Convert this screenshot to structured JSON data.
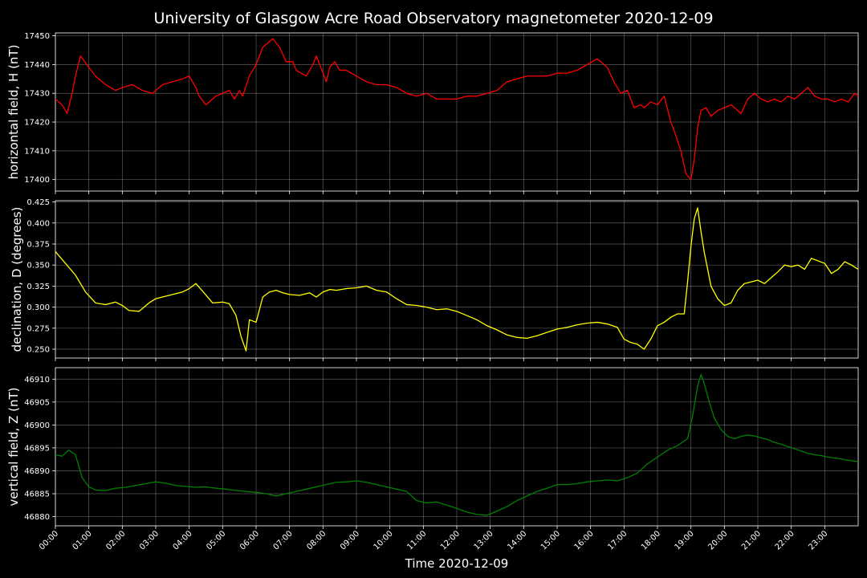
{
  "title": "University of Glasgow Acre Road Observatory magnetometer 2020-12-09",
  "chart_data": [
    {
      "type": "line",
      "ylabel": "horizontal field, H (nT)",
      "color": "#ff0000",
      "xlim": [
        0,
        24
      ],
      "ylim": [
        17396,
        17451
      ],
      "yticks": [
        17400,
        17410,
        17420,
        17430,
        17440,
        17450
      ],
      "grid": true,
      "series": [
        {
          "x": [
            0,
            0.2,
            0.35,
            0.5,
            0.6,
            0.75,
            1.0,
            1.2,
            1.5,
            1.8,
            2.0,
            2.3,
            2.6,
            2.9,
            3.2,
            3.5,
            3.8,
            4.0,
            4.2,
            4.3,
            4.5,
            4.8,
            5.0,
            5.2,
            5.35,
            5.5,
            5.6,
            5.8,
            6.0,
            6.2,
            6.5,
            6.7,
            6.9,
            7.1,
            7.2,
            7.35,
            7.5,
            7.7,
            7.8,
            8.0,
            8.1,
            8.2,
            8.35,
            8.5,
            8.7,
            9.0,
            9.3,
            9.6,
            9.9,
            10.2,
            10.5,
            10.8,
            11.1,
            11.4,
            11.7,
            12.0,
            12.3,
            12.6,
            12.9,
            13.2,
            13.5,
            13.8,
            14.1,
            14.4,
            14.7,
            15.0,
            15.3,
            15.6,
            15.9,
            16.2,
            16.5,
            16.7,
            16.9,
            17.1,
            17.3,
            17.5,
            17.6,
            17.8,
            18.0,
            18.2,
            18.4,
            18.5,
            18.7,
            18.85,
            19.0,
            19.1,
            19.2,
            19.3,
            19.45,
            19.6,
            19.8,
            20.0,
            20.2,
            20.4,
            20.5,
            20.7,
            20.9,
            21.1,
            21.3,
            21.5,
            21.7,
            21.9,
            22.1,
            22.3,
            22.5,
            22.7,
            22.9,
            23.1,
            23.3,
            23.5,
            23.7,
            23.9,
            24.0
          ],
          "values": [
            17428,
            17426,
            17423,
            17430,
            17436,
            17443,
            17439,
            17436,
            17433,
            17431,
            17432,
            17433,
            17431,
            17430,
            17433,
            17434,
            17435,
            17436,
            17432,
            17429,
            17426,
            17429,
            17430,
            17431,
            17428,
            17431,
            17429,
            17436,
            17440,
            17446,
            17449,
            17446,
            17441,
            17441,
            17438,
            17437,
            17436,
            17440,
            17443,
            17437,
            17434,
            17439,
            17441,
            17438,
            17438,
            17436,
            17434,
            17433,
            17433,
            17432,
            17430,
            17429,
            17430,
            17428,
            17428,
            17428,
            17429,
            17429,
            17430,
            17431,
            17434,
            17435,
            17436,
            17436,
            17436,
            17437,
            17437,
            17438,
            17440,
            17442,
            17439,
            17434,
            17430,
            17431,
            17425,
            17426,
            17425,
            17427,
            17426,
            17429,
            17420,
            17417,
            17410,
            17402,
            17400,
            17407,
            17418,
            17424,
            17425,
            17422,
            17424,
            17425,
            17426,
            17424,
            17423,
            17428,
            17430,
            17428,
            17427,
            17428,
            17427,
            17429,
            17428,
            17430,
            17432,
            17429,
            17428,
            17428,
            17427,
            17428,
            17427,
            17430,
            17429
          ]
        }
      ]
    },
    {
      "type": "line",
      "ylabel": "declination, D (degrees)",
      "color": "#ffff00",
      "xlim": [
        0,
        24
      ],
      "ylim": [
        0.2395,
        0.4265
      ],
      "yticks": [
        0.25,
        0.275,
        0.3,
        0.325,
        0.35,
        0.375,
        0.4,
        0.425
      ],
      "grid": true,
      "series": [
        {
          "x": [
            0,
            0.3,
            0.6,
            0.9,
            1.2,
            1.5,
            1.8,
            2.0,
            2.2,
            2.5,
            2.8,
            3.0,
            3.2,
            3.5,
            3.8,
            4.0,
            4.2,
            4.4,
            4.7,
            5.0,
            5.2,
            5.4,
            5.55,
            5.7,
            5.8,
            6.0,
            6.2,
            6.4,
            6.6,
            6.8,
            7.0,
            7.3,
            7.6,
            7.8,
            8.0,
            8.2,
            8.4,
            8.7,
            9.0,
            9.3,
            9.6,
            9.9,
            10.2,
            10.5,
            10.8,
            11.1,
            11.4,
            11.7,
            12.0,
            12.3,
            12.6,
            12.9,
            13.2,
            13.5,
            13.8,
            14.1,
            14.4,
            14.7,
            15.0,
            15.3,
            15.6,
            15.9,
            16.2,
            16.5,
            16.8,
            17.0,
            17.2,
            17.4,
            17.6,
            17.8,
            18.0,
            18.2,
            18.4,
            18.6,
            18.8,
            18.9,
            19.0,
            19.1,
            19.2,
            19.3,
            19.4,
            19.5,
            19.6,
            19.8,
            20.0,
            20.2,
            20.4,
            20.6,
            20.8,
            21.0,
            21.2,
            21.4,
            21.6,
            21.8,
            22.0,
            22.2,
            22.4,
            22.6,
            22.8,
            23.0,
            23.2,
            23.4,
            23.6,
            23.8,
            24.0
          ],
          "values": [
            0.366,
            0.352,
            0.338,
            0.318,
            0.305,
            0.303,
            0.306,
            0.302,
            0.296,
            0.295,
            0.305,
            0.31,
            0.312,
            0.315,
            0.318,
            0.322,
            0.328,
            0.319,
            0.305,
            0.306,
            0.304,
            0.29,
            0.265,
            0.248,
            0.285,
            0.282,
            0.312,
            0.318,
            0.32,
            0.317,
            0.315,
            0.314,
            0.317,
            0.312,
            0.318,
            0.321,
            0.32,
            0.322,
            0.323,
            0.325,
            0.32,
            0.318,
            0.31,
            0.303,
            0.302,
            0.3,
            0.297,
            0.298,
            0.295,
            0.29,
            0.285,
            0.278,
            0.273,
            0.267,
            0.264,
            0.263,
            0.266,
            0.27,
            0.274,
            0.276,
            0.279,
            0.281,
            0.282,
            0.28,
            0.276,
            0.262,
            0.258,
            0.256,
            0.25,
            0.262,
            0.278,
            0.282,
            0.288,
            0.292,
            0.292,
            0.33,
            0.372,
            0.405,
            0.418,
            0.39,
            0.365,
            0.345,
            0.325,
            0.31,
            0.302,
            0.305,
            0.32,
            0.328,
            0.33,
            0.332,
            0.328,
            0.335,
            0.342,
            0.35,
            0.348,
            0.35,
            0.345,
            0.358,
            0.355,
            0.352,
            0.34,
            0.345,
            0.354,
            0.35,
            0.345
          ]
        }
      ]
    },
    {
      "type": "line",
      "ylabel": "vertical field, Z (nT)",
      "color": "#008000",
      "xlim": [
        0,
        24
      ],
      "ylim": [
        46878,
        46912.5
      ],
      "yticks": [
        46880,
        46885,
        46890,
        46895,
        46900,
        46905,
        46910
      ],
      "grid": true,
      "series": [
        {
          "x": [
            0,
            0.2,
            0.4,
            0.6,
            0.8,
            1.0,
            1.2,
            1.5,
            1.8,
            2.1,
            2.4,
            2.7,
            3.0,
            3.3,
            3.6,
            3.9,
            4.2,
            4.5,
            4.8,
            5.1,
            5.4,
            5.7,
            6.0,
            6.3,
            6.6,
            6.9,
            7.2,
            7.5,
            7.8,
            8.1,
            8.4,
            8.7,
            9.0,
            9.3,
            9.6,
            9.9,
            10.2,
            10.5,
            10.8,
            11.1,
            11.4,
            11.7,
            12.0,
            12.3,
            12.6,
            12.9,
            13.2,
            13.5,
            13.8,
            14.1,
            14.4,
            14.7,
            15.0,
            15.3,
            15.6,
            15.9,
            16.2,
            16.5,
            16.8,
            17.1,
            17.4,
            17.7,
            18.0,
            18.3,
            18.6,
            18.9,
            19.05,
            19.2,
            19.3,
            19.4,
            19.55,
            19.7,
            19.9,
            20.1,
            20.3,
            20.5,
            20.7,
            20.9,
            21.1,
            21.3,
            21.5,
            21.7,
            21.9,
            22.1,
            22.3,
            22.5,
            22.7,
            22.9,
            23.1,
            23.3,
            23.5,
            23.7,
            24.0
          ],
          "values": [
            46893.5,
            46893.2,
            46894.5,
            46893.5,
            46888.5,
            46886.5,
            46885.8,
            46885.7,
            46886.2,
            46886.4,
            46886.8,
            46887.2,
            46887.6,
            46887.3,
            46886.8,
            46886.6,
            46886.4,
            46886.5,
            46886.2,
            46886.0,
            46885.7,
            46885.5,
            46885.3,
            46885.0,
            46884.5,
            46885.0,
            46885.5,
            46886.0,
            46886.5,
            46887.0,
            46887.5,
            46887.6,
            46887.8,
            46887.5,
            46887.0,
            46886.5,
            46886.0,
            46885.5,
            46883.5,
            46883.0,
            46883.2,
            46882.5,
            46881.8,
            46881.0,
            46880.5,
            46880.3,
            46881.2,
            46882.2,
            46883.5,
            46884.5,
            46885.5,
            46886.2,
            46887.0,
            46887.0,
            46887.2,
            46887.6,
            46887.8,
            46888.0,
            46887.8,
            46888.5,
            46889.5,
            46891.5,
            46893.0,
            46894.5,
            46895.5,
            46897.0,
            46902.0,
            46908.5,
            46911.0,
            46909.0,
            46905.0,
            46901.5,
            46899.0,
            46897.5,
            46897.0,
            46897.5,
            46897.8,
            46897.6,
            46897.2,
            46896.8,
            46896.2,
            46895.8,
            46895.3,
            46894.8,
            46894.3,
            46893.8,
            46893.5,
            46893.3,
            46893.0,
            46892.8,
            46892.6,
            46892.3,
            46892.0
          ]
        }
      ]
    }
  ],
  "xticks": [
    "00:00",
    "01:00",
    "02:00",
    "03:00",
    "04:00",
    "05:00",
    "06:00",
    "07:00",
    "08:00",
    "09:00",
    "10:00",
    "11:00",
    "12:00",
    "13:00",
    "14:00",
    "15:00",
    "16:00",
    "17:00",
    "18:00",
    "19:00",
    "20:00",
    "21:00",
    "22:00",
    "23:00"
  ],
  "xlabel": "Time 2020-12-09"
}
